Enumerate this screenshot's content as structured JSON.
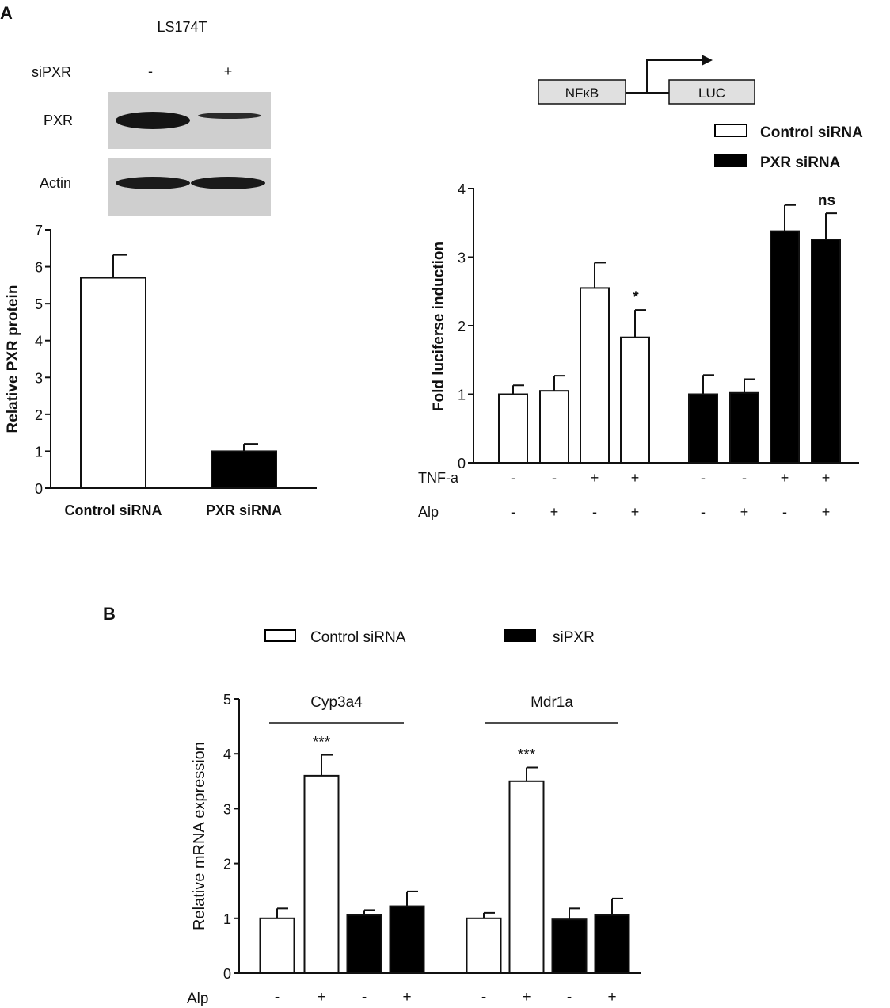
{
  "panels": {
    "a_label": "A",
    "b_label": "B"
  },
  "blot": {
    "cell_line": "LS174T",
    "row_label": "siPXR",
    "lane_signs": [
      "-",
      "+"
    ],
    "bands": [
      {
        "label": "PXR",
        "intensities": [
          1.0,
          0.35
        ]
      },
      {
        "label": "Actin",
        "intensities": [
          0.9,
          0.9
        ]
      }
    ]
  },
  "construct": {
    "promoter": "NFκB",
    "reporter": "LUC"
  },
  "chart_data": [
    {
      "type": "bar",
      "categories": [
        "Control siRNA",
        "PXR siRNA"
      ],
      "values": [
        5.7,
        1.0
      ],
      "errors": [
        0.62,
        0.2
      ],
      "fills": [
        "#ffffff",
        "#000000"
      ],
      "ylabel": "Relative PXR protein",
      "ylim": [
        0,
        7
      ],
      "yticks": [
        "0",
        "1",
        "2",
        "3",
        "4",
        "5",
        "6",
        "7"
      ],
      "grid": false
    },
    {
      "type": "bar",
      "series": [
        {
          "name": "Control siRNA",
          "values": [
            1.0,
            1.05,
            2.55,
            1.83
          ],
          "errors": [
            0.13,
            0.22,
            0.37,
            0.4
          ],
          "fill": "#ffffff"
        },
        {
          "name": "PXR siRNA",
          "values": [
            1.0,
            1.02,
            3.38,
            3.26
          ],
          "errors": [
            0.28,
            0.2,
            0.38,
            0.38
          ],
          "fill": "#000000"
        }
      ],
      "annotations": [
        "",
        "",
        "",
        "*",
        "",
        "",
        "",
        "ns"
      ],
      "treatments": [
        {
          "label": "TNF-a",
          "signs": [
            "-",
            "-",
            "+",
            "+",
            "-",
            "-",
            "+",
            "+"
          ]
        },
        {
          "label": "Alp",
          "signs": [
            "-",
            "+",
            "-",
            "+",
            "-",
            "+",
            "-",
            "+"
          ]
        }
      ],
      "ylabel": "Fold luciferse induction",
      "ylim": [
        0,
        4
      ],
      "yticks": [
        "0",
        "1",
        "2",
        "3",
        "4"
      ],
      "legend": "top-right",
      "grid": false
    },
    {
      "type": "bar",
      "groups": [
        "Cyp3a4",
        "Mdr1a"
      ],
      "series": [
        {
          "name": "Control siRNA",
          "fill": "#ffffff"
        },
        {
          "name": "siPXR",
          "fill": "#000000"
        }
      ],
      "values": [
        1.0,
        3.6,
        1.06,
        1.22,
        1.0,
        3.5,
        0.98,
        1.06
      ],
      "errors": [
        0.18,
        0.38,
        0.09,
        0.27,
        0.1,
        0.25,
        0.2,
        0.3
      ],
      "annotations": [
        "",
        "***",
        "",
        "",
        "",
        "***",
        "",
        ""
      ],
      "treatments": [
        {
          "label": "Alp",
          "signs": [
            "-",
            "+",
            "-",
            "+",
            "-",
            "+",
            "-",
            "+"
          ]
        }
      ],
      "ylabel": "Relative  mRNA expression",
      "ylim": [
        0,
        5
      ],
      "yticks": [
        "0",
        "1",
        "2",
        "3",
        "4",
        "5"
      ],
      "legend": "top",
      "grid": false
    }
  ]
}
